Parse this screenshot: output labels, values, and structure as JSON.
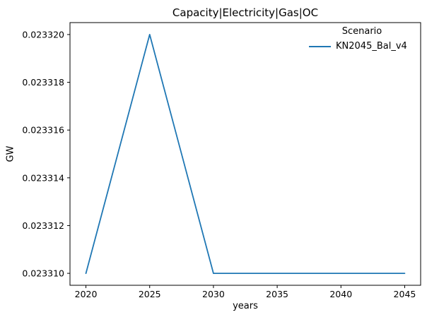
{
  "chart_data": {
    "type": "line",
    "title": "Capacity|Electricity|Gas|OC",
    "xlabel": "years",
    "ylabel": "GW",
    "legend": {
      "title": "Scenario",
      "position": "upper right"
    },
    "series": [
      {
        "name": "KN2045_Bal_v4",
        "color": "#1f77b4",
        "x": [
          2020,
          2025,
          2030,
          2035,
          2040,
          2045
        ],
        "y": [
          0.02331,
          0.02332,
          0.02331,
          0.02331,
          0.02331,
          0.02331
        ]
      }
    ],
    "xlim": [
      2018.75,
      2046.25
    ],
    "ylim": [
      0.0233095,
      0.0233205
    ],
    "xticks": [
      2020,
      2025,
      2030,
      2035,
      2040,
      2045
    ],
    "xtick_labels": [
      "2020",
      "2025",
      "2030",
      "2035",
      "2040",
      "2045"
    ],
    "yticks": [
      0.02331,
      0.023312,
      0.023314,
      0.023316,
      0.023318,
      0.02332
    ],
    "ytick_labels": [
      "0.023310",
      "0.023312",
      "0.023314",
      "0.023316",
      "0.023318",
      "0.023320"
    ],
    "grid": false,
    "background": "#ffffff",
    "spine_color": "#000000"
  }
}
